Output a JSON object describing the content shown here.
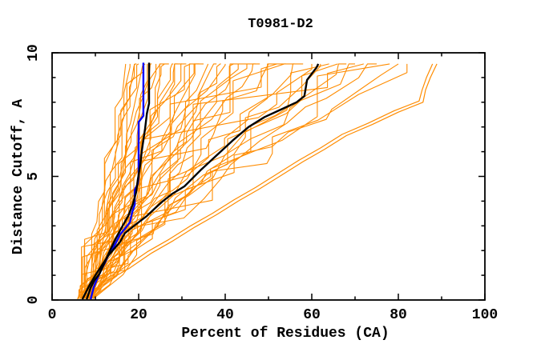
{
  "window": {
    "background": "#ffffff"
  },
  "chart_data": {
    "type": "line",
    "title": "T0981-D2",
    "xlabel": "Percent of Residues (CA)",
    "ylabel": "Distance Cutoff, A",
    "xlim": [
      0,
      100
    ],
    "ylim": [
      0,
      10
    ],
    "grid": false,
    "legend": "none",
    "x_major_ticks": [
      0,
      20,
      40,
      60,
      80,
      100
    ],
    "x_minor_ticks": [
      10,
      30,
      50,
      70,
      90
    ],
    "y_major_ticks": [
      0,
      5,
      10
    ],
    "y_minor_ticks": [
      1,
      2,
      3,
      4,
      6,
      7,
      8,
      9
    ],
    "x_tick_labels": [
      "0",
      "20",
      "40",
      "60",
      "80",
      "100"
    ],
    "y_tick_labels": [
      "0",
      "5",
      "10"
    ],
    "colors": {
      "ensemble": "#FF8C00",
      "highlight_blue": "#0000FF",
      "highlight_black": "#000000",
      "axis": "#000000"
    },
    "series": [
      {
        "name": "highlighted-model-blue",
        "color": "#0000FF",
        "width": 2.4,
        "points": [
          [
            8.9,
            0.03
          ],
          [
            9.6,
            0.5
          ],
          [
            10.4,
            0.85
          ],
          [
            11.3,
            1.2
          ],
          [
            12.2,
            1.5
          ],
          [
            13.1,
            1.85
          ],
          [
            14.1,
            2.1
          ],
          [
            15.0,
            2.4
          ],
          [
            15.7,
            2.65
          ],
          [
            17.0,
            2.92
          ],
          [
            18.0,
            3.15
          ],
          [
            18.5,
            3.55
          ],
          [
            19.1,
            3.85
          ],
          [
            19.1,
            4.45
          ],
          [
            19.8,
            4.7
          ],
          [
            20.0,
            5.0
          ],
          [
            20.0,
            7.2
          ],
          [
            21.1,
            7.45
          ],
          [
            21.1,
            9.6
          ]
        ]
      },
      {
        "name": "highlighted-model-black-left",
        "color": "#000000",
        "width": 2.4,
        "points": [
          [
            8.0,
            0.03
          ],
          [
            8.9,
            0.5
          ],
          [
            9.8,
            0.8
          ],
          [
            10.9,
            1.05
          ],
          [
            11.7,
            1.35
          ],
          [
            12.6,
            1.7
          ],
          [
            13.5,
            2.05
          ],
          [
            14.6,
            2.45
          ],
          [
            16.3,
            3.0
          ],
          [
            17.6,
            3.4
          ],
          [
            18.7,
            3.9
          ],
          [
            19.4,
            4.35
          ],
          [
            19.8,
            4.85
          ],
          [
            20.4,
            5.5
          ],
          [
            20.7,
            6.0
          ],
          [
            21.5,
            6.95
          ],
          [
            21.9,
            7.55
          ],
          [
            22.4,
            7.95
          ],
          [
            22.4,
            9.6
          ]
        ]
      },
      {
        "name": "highlighted-model-black-right",
        "color": "#000000",
        "width": 2.4,
        "points": [
          [
            7.0,
            0.03
          ],
          [
            8.5,
            0.55
          ],
          [
            10.0,
            1.0
          ],
          [
            11.5,
            1.4
          ],
          [
            13.0,
            1.8
          ],
          [
            14.5,
            2.1
          ],
          [
            15.7,
            2.35
          ],
          [
            16.8,
            2.7
          ],
          [
            18.9,
            3.0
          ],
          [
            21.9,
            3.4
          ],
          [
            23.7,
            3.7
          ],
          [
            25.6,
            4.0
          ],
          [
            27.8,
            4.3
          ],
          [
            30.6,
            4.6
          ],
          [
            34.3,
            5.25
          ],
          [
            38.0,
            5.85
          ],
          [
            41.7,
            6.45
          ],
          [
            45.4,
            7.0
          ],
          [
            49.1,
            7.4
          ],
          [
            52.8,
            7.7
          ],
          [
            56.5,
            8.0
          ],
          [
            58.3,
            8.25
          ],
          [
            58.9,
            8.9
          ],
          [
            60.2,
            9.2
          ],
          [
            61.1,
            9.4
          ],
          [
            61.5,
            9.55
          ]
        ]
      },
      {
        "name": "ensemble-outlier-1",
        "color": "#FF8C00",
        "width": 1.2,
        "points": [
          [
            9.0,
            0.03
          ],
          [
            13,
            0.8
          ],
          [
            18,
            1.3
          ],
          [
            23,
            1.9
          ],
          [
            28,
            2.4
          ],
          [
            33,
            2.95
          ],
          [
            38,
            3.45
          ],
          [
            43,
            4.0
          ],
          [
            48,
            4.5
          ],
          [
            53,
            5.05
          ],
          [
            58,
            5.6
          ],
          [
            63,
            6.1
          ],
          [
            68,
            6.65
          ],
          [
            74,
            7.1
          ],
          [
            80,
            7.6
          ],
          [
            85.7,
            8.0
          ],
          [
            86.3,
            8.5
          ],
          [
            87.4,
            9.0
          ],
          [
            88.9,
            9.55
          ]
        ]
      },
      {
        "name": "ensemble-outlier-2",
        "color": "#FF8C00",
        "width": 1.2,
        "points": [
          [
            8.5,
            0.03
          ],
          [
            12,
            0.8
          ],
          [
            17,
            1.35
          ],
          [
            22,
            1.95
          ],
          [
            27,
            2.45
          ],
          [
            32,
            3.0
          ],
          [
            37,
            3.5
          ],
          [
            42,
            4.05
          ],
          [
            47,
            4.55
          ],
          [
            52,
            5.1
          ],
          [
            57,
            5.65
          ],
          [
            62,
            6.15
          ],
          [
            67,
            6.7
          ],
          [
            73,
            7.15
          ],
          [
            79,
            7.65
          ],
          [
            84.8,
            8.05
          ],
          [
            85.5,
            8.5
          ],
          [
            86.5,
            9.0
          ],
          [
            87.9,
            9.55
          ]
        ]
      }
    ],
    "ensemble": {
      "name": "other-models",
      "color": "#FF8C00",
      "width": 1.1,
      "cutoff_top": 9.55,
      "seed": 13,
      "lines": [
        {
          "x0": 6.5,
          "x9": 17
        },
        {
          "x0": 7.5,
          "x9": 18
        },
        {
          "x0": 8.0,
          "x9": 19
        },
        {
          "x0": 8.5,
          "x9": 19.5
        },
        {
          "x0": 7.0,
          "x9": 20
        },
        {
          "x0": 9.0,
          "x9": 21
        },
        {
          "x0": 8.0,
          "x9": 21.5
        },
        {
          "x0": 9.5,
          "x9": 22
        },
        {
          "x0": 7.5,
          "x9": 23
        },
        {
          "x0": 8.5,
          "x9": 24
        },
        {
          "x0": 6.8,
          "x9": 25
        },
        {
          "x0": 9.0,
          "x9": 26
        },
        {
          "x0": 7.0,
          "x9": 27
        },
        {
          "x0": 8.0,
          "x9": 28
        },
        {
          "x0": 9.0,
          "x9": 29
        },
        {
          "x0": 6.0,
          "x9": 30
        },
        {
          "x0": 8.5,
          "x9": 31
        },
        {
          "x0": 7.5,
          "x9": 32
        },
        {
          "x0": 9.0,
          "x9": 33
        },
        {
          "x0": 8.0,
          "x9": 34
        },
        {
          "x0": 6.5,
          "x9": 35
        },
        {
          "x0": 9.5,
          "x9": 36
        },
        {
          "x0": 7.0,
          "x9": 38
        },
        {
          "x0": 8.0,
          "x9": 39
        },
        {
          "x0": 9.0,
          "x9": 40
        },
        {
          "x0": 6.8,
          "x9": 42
        },
        {
          "x0": 7.8,
          "x9": 43
        },
        {
          "x0": 8.8,
          "x9": 45
        },
        {
          "x0": 6.0,
          "x9": 47
        },
        {
          "x0": 9.0,
          "x9": 48
        },
        {
          "x0": 7.5,
          "x9": 50
        },
        {
          "x0": 8.5,
          "x9": 52
        },
        {
          "x0": 6.5,
          "x9": 54
        },
        {
          "x0": 9.0,
          "x9": 56
        },
        {
          "x0": 7.0,
          "x9": 58
        },
        {
          "x0": 8.0,
          "x9": 60
        },
        {
          "x0": 9.5,
          "x9": 62
        },
        {
          "x0": 6.8,
          "x9": 64
        },
        {
          "x0": 7.8,
          "x9": 66
        },
        {
          "x0": 8.8,
          "x9": 68
        },
        {
          "x0": 6.2,
          "x9": 70
        },
        {
          "x0": 7.2,
          "x9": 72
        },
        {
          "x0": 8.2,
          "x9": 75
        },
        {
          "x0": 5.8,
          "x9": 78
        },
        {
          "x0": 7.0,
          "x9": 80
        },
        {
          "x0": 8.0,
          "x9": 82
        }
      ]
    }
  }
}
